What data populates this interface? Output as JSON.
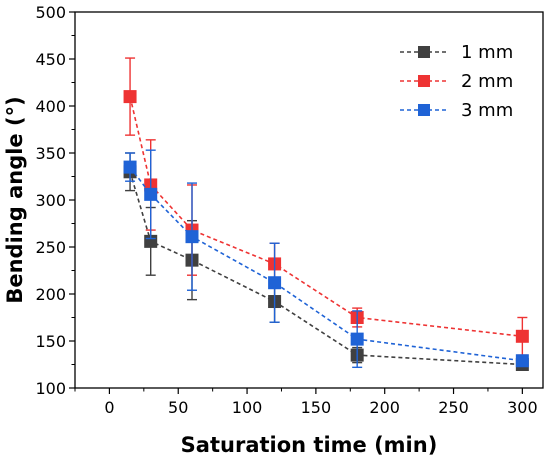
{
  "chart_data": {
    "type": "line",
    "title": "",
    "xlabel": "Saturation time (min)",
    "ylabel": "Bending angle (°)",
    "xlim": [
      -25,
      315
    ],
    "ylim": [
      100,
      500
    ],
    "x_ticks": [
      0,
      50,
      100,
      150,
      200,
      250,
      300
    ],
    "y_ticks": [
      100,
      150,
      200,
      250,
      300,
      350,
      400,
      450,
      500
    ],
    "x_tick_labels": [
      "0",
      "50",
      "100",
      "150",
      "200",
      "250",
      "300"
    ],
    "y_tick_labels": [
      "100",
      "150",
      "200",
      "250",
      "300",
      "350",
      "400",
      "450",
      "500"
    ],
    "grid": false,
    "legend_position": "top-right",
    "series": [
      {
        "name": "1 mm",
        "color": "#404040",
        "x": [
          15,
          30,
          60,
          120,
          180,
          300
        ],
        "values": [
          330,
          256,
          236,
          192,
          135,
          125
        ],
        "error": [
          20,
          36,
          42,
          22,
          8,
          3
        ]
      },
      {
        "name": "2 mm",
        "color": "#ee3333",
        "x": [
          15,
          30,
          60,
          120,
          180,
          300
        ],
        "values": [
          410,
          316,
          268,
          232,
          175,
          155
        ],
        "error": [
          41,
          48,
          48,
          22,
          10,
          20
        ]
      },
      {
        "name": "3 mm",
        "color": "#1f63d6",
        "x": [
          15,
          30,
          60,
          120,
          180,
          300
        ],
        "values": [
          335,
          306,
          261,
          212,
          152,
          129
        ],
        "error": [
          15,
          47,
          57,
          42,
          30,
          5
        ]
      }
    ]
  }
}
